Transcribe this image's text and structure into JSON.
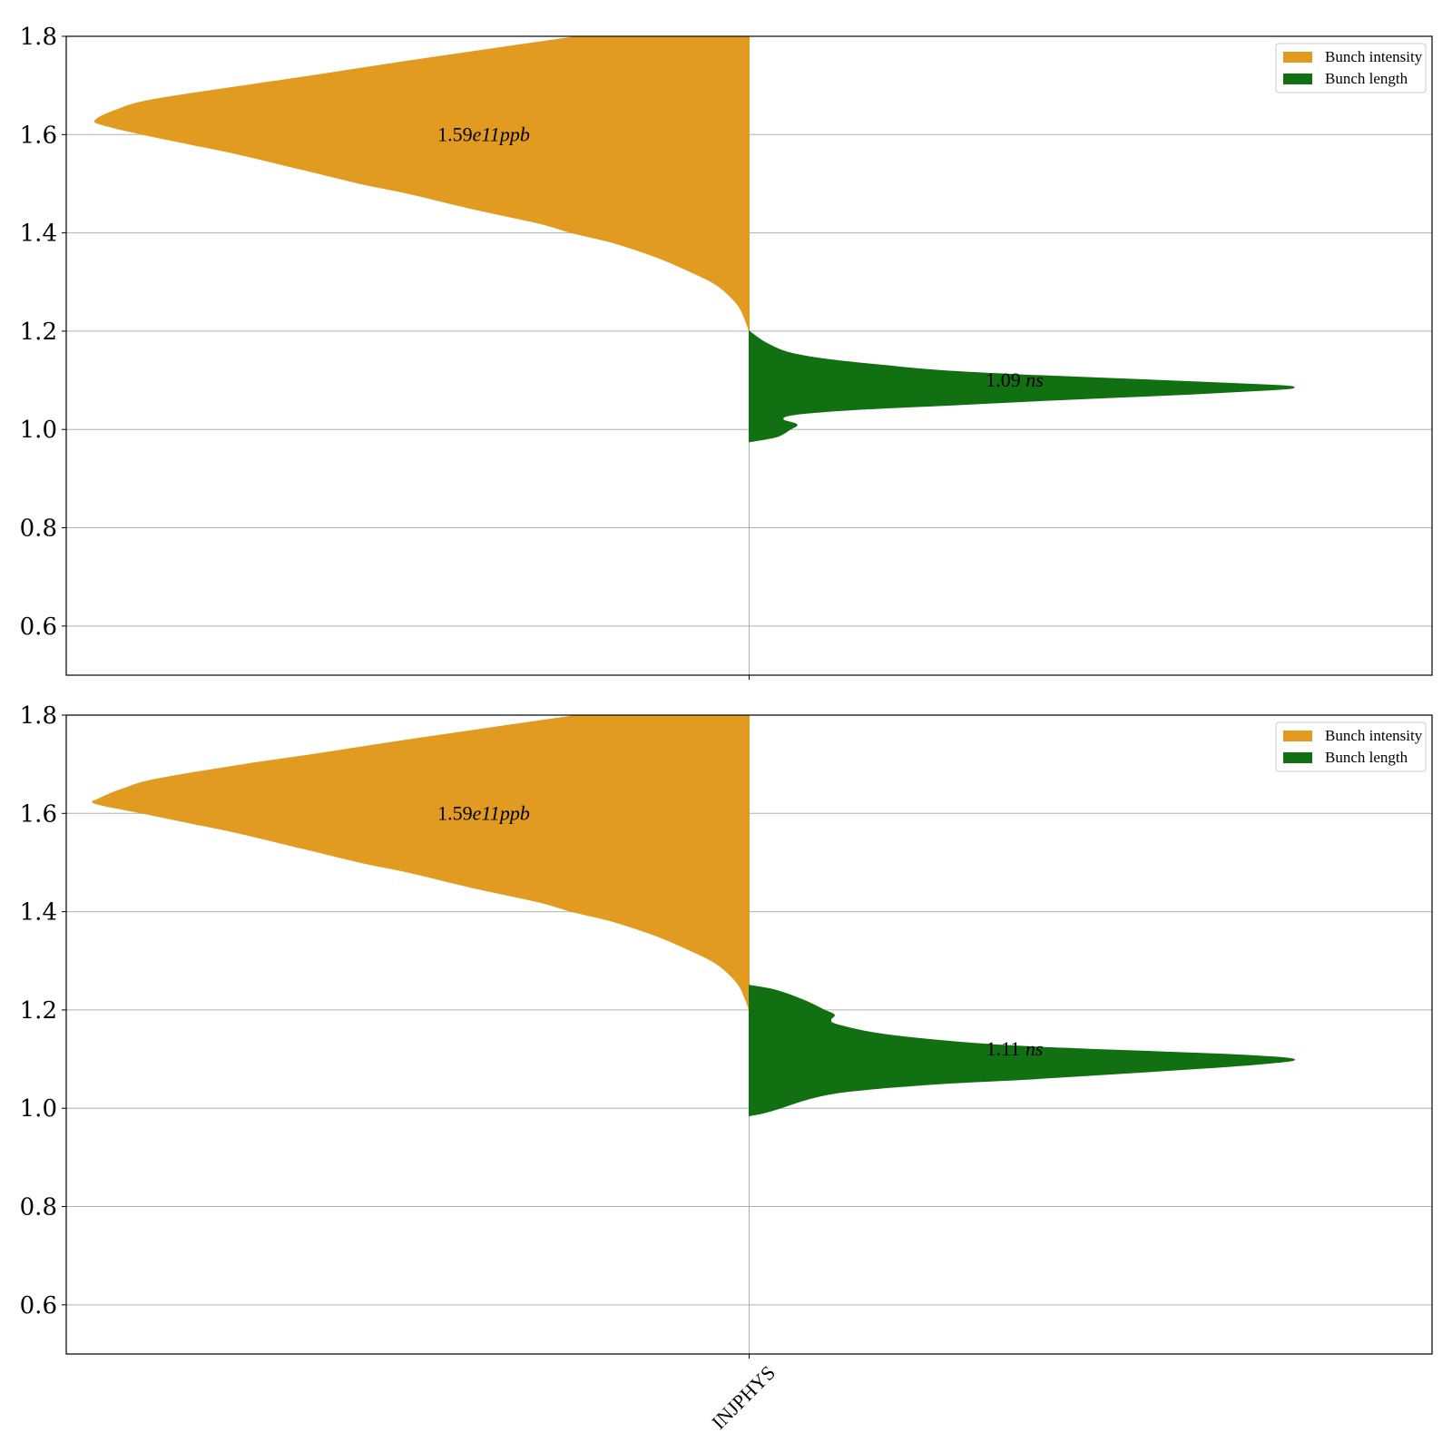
{
  "colors": {
    "intensity": "#e09b20",
    "length": "#117011",
    "grid": "#b0b0b0"
  },
  "chart_data": [
    {
      "type": "violin",
      "categories": [
        "INJPHYS"
      ],
      "ylim": [
        0.5,
        1.8
      ],
      "yticks": [
        "0.6",
        "0.8",
        "1.0",
        "1.2",
        "1.4",
        "1.6",
        "1.8"
      ],
      "grid": true,
      "legend_position": "top-right",
      "legend": [
        "Bunch intensity",
        "Bunch length"
      ],
      "series": [
        {
          "name": "Bunch intensity",
          "side": "left",
          "color": "#e09b20",
          "density_profile": [
            [
              1.2,
              0.0
            ],
            [
              1.22,
              0.005
            ],
            [
              1.25,
              0.015
            ],
            [
              1.28,
              0.035
            ],
            [
              1.3,
              0.055
            ],
            [
              1.32,
              0.085
            ],
            [
              1.35,
              0.135
            ],
            [
              1.38,
              0.2
            ],
            [
              1.4,
              0.26
            ],
            [
              1.42,
              0.31
            ],
            [
              1.45,
              0.41
            ],
            [
              1.48,
              0.5
            ],
            [
              1.5,
              0.57
            ],
            [
              1.53,
              0.66
            ],
            [
              1.56,
              0.75
            ],
            [
              1.58,
              0.82
            ],
            [
              1.6,
              0.89
            ],
            [
              1.62,
              0.95
            ],
            [
              1.63,
              0.96
            ],
            [
              1.65,
              0.93
            ],
            [
              1.67,
              0.88
            ],
            [
              1.7,
              0.74
            ],
            [
              1.72,
              0.64
            ],
            [
              1.75,
              0.5
            ],
            [
              1.78,
              0.35
            ],
            [
              1.8,
              0.25
            ]
          ],
          "mean_label_value": "1.59",
          "mean_label_exp": "e11",
          "mean_label_unit": "ppb",
          "mean_label_y": 1.6
        },
        {
          "name": "Bunch length",
          "side": "right",
          "color": "#117011",
          "density_profile": [
            [
              0.975,
              0.0
            ],
            [
              0.985,
              0.04
            ],
            [
              1.0,
              0.06
            ],
            [
              1.01,
              0.07
            ],
            [
              1.02,
              0.05
            ],
            [
              1.03,
              0.065
            ],
            [
              1.04,
              0.15
            ],
            [
              1.05,
              0.3
            ],
            [
              1.06,
              0.45
            ],
            [
              1.07,
              0.62
            ],
            [
              1.08,
              0.76
            ],
            [
              1.085,
              0.8
            ],
            [
              1.09,
              0.77
            ],
            [
              1.1,
              0.6
            ],
            [
              1.11,
              0.42
            ],
            [
              1.12,
              0.28
            ],
            [
              1.13,
              0.2
            ],
            [
              1.14,
              0.13
            ],
            [
              1.15,
              0.08
            ],
            [
              1.16,
              0.05
            ],
            [
              1.18,
              0.02
            ],
            [
              1.2,
              0.0
            ]
          ],
          "mean_label_value": "1.09",
          "mean_label_unit": "ns",
          "mean_label_y": 1.1
        }
      ]
    },
    {
      "type": "violin",
      "categories": [
        "INJPHYS"
      ],
      "ylim": [
        0.5,
        1.8
      ],
      "yticks": [
        "0.6",
        "0.8",
        "1.0",
        "1.2",
        "1.4",
        "1.6",
        "1.8"
      ],
      "grid": true,
      "legend_position": "top-right",
      "legend": [
        "Bunch intensity",
        "Bunch length"
      ],
      "series": [
        {
          "name": "Bunch intensity",
          "side": "left",
          "color": "#e09b20",
          "density_profile": [
            [
              1.2,
              0.0
            ],
            [
              1.22,
              0.005
            ],
            [
              1.25,
              0.015
            ],
            [
              1.28,
              0.035
            ],
            [
              1.3,
              0.055
            ],
            [
              1.32,
              0.085
            ],
            [
              1.35,
              0.135
            ],
            [
              1.38,
              0.2
            ],
            [
              1.4,
              0.26
            ],
            [
              1.42,
              0.31
            ],
            [
              1.45,
              0.41
            ],
            [
              1.48,
              0.5
            ],
            [
              1.5,
              0.57
            ],
            [
              1.53,
              0.66
            ],
            [
              1.56,
              0.75
            ],
            [
              1.58,
              0.82
            ],
            [
              1.6,
              0.89
            ],
            [
              1.62,
              0.96
            ],
            [
              1.63,
              0.955
            ],
            [
              1.65,
              0.92
            ],
            [
              1.67,
              0.87
            ],
            [
              1.7,
              0.74
            ],
            [
              1.72,
              0.64
            ],
            [
              1.75,
              0.5
            ],
            [
              1.78,
              0.35
            ],
            [
              1.8,
              0.25
            ]
          ],
          "mean_label_value": "1.59",
          "mean_label_exp": "e11",
          "mean_label_unit": "ppb",
          "mean_label_y": 1.6
        },
        {
          "name": "Bunch length",
          "side": "right",
          "color": "#117011",
          "density_profile": [
            [
              0.985,
              0.0
            ],
            [
              0.99,
              0.02
            ],
            [
              1.0,
              0.045
            ],
            [
              1.02,
              0.09
            ],
            [
              1.035,
              0.15
            ],
            [
              1.05,
              0.28
            ],
            [
              1.06,
              0.42
            ],
            [
              1.08,
              0.65
            ],
            [
              1.09,
              0.75
            ],
            [
              1.1,
              0.8
            ],
            [
              1.11,
              0.7
            ],
            [
              1.12,
              0.5
            ],
            [
              1.13,
              0.35
            ],
            [
              1.15,
              0.2
            ],
            [
              1.17,
              0.13
            ],
            [
              1.18,
              0.12
            ],
            [
              1.19,
              0.125
            ],
            [
              1.2,
              0.11
            ],
            [
              1.22,
              0.08
            ],
            [
              1.24,
              0.04
            ],
            [
              1.25,
              0.0
            ]
          ],
          "mean_label_value": "1.11",
          "mean_label_unit": "ns",
          "mean_label_y": 1.12
        }
      ]
    }
  ]
}
